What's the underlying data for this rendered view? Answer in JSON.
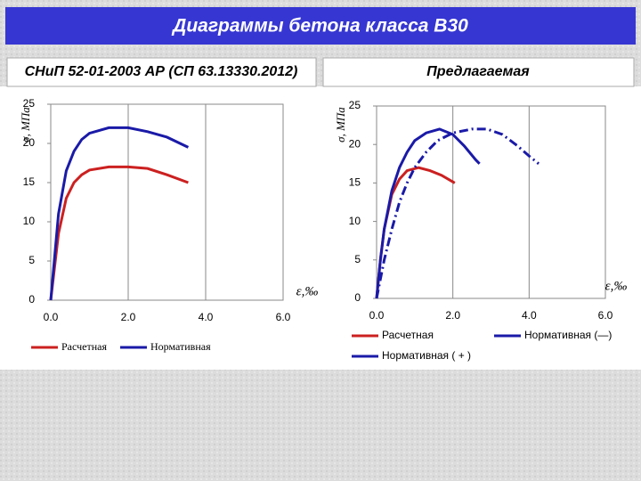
{
  "page_title": "Диаграммы бетона класса В30",
  "chart_data": [
    {
      "type": "line",
      "title": "СНиП 52-01-2003 АР (СП 63.13330.2012)",
      "xlabel": "ε,‰",
      "ylabel": "σ, МПа",
      "xlim": [
        0,
        6
      ],
      "ylim": [
        0,
        25
      ],
      "xticks": [
        {
          "value": 0,
          "label": "0.0"
        },
        {
          "value": 2,
          "label": "2.0"
        },
        {
          "value": 4,
          "label": "4.0"
        },
        {
          "value": 6,
          "label": "6.0"
        }
      ],
      "yticks": [
        0,
        5,
        10,
        15,
        20,
        25
      ],
      "grid": true,
      "legend": "bottom",
      "series": [
        {
          "name": "Расчетная",
          "color": "#cc2020",
          "line_style": "solid",
          "x": [
            0,
            0.2,
            0.4,
            0.6,
            0.8,
            1.0,
            1.5,
            2.0,
            2.5,
            3.0,
            3.55
          ],
          "values": [
            0,
            8.5,
            13,
            15,
            16,
            16.6,
            17,
            17,
            16.8,
            16,
            15
          ]
        },
        {
          "name": "Нормативная",
          "color": "#1a1aa8",
          "line_style": "solid",
          "x": [
            0,
            0.2,
            0.4,
            0.6,
            0.8,
            1.0,
            1.5,
            2.0,
            2.5,
            3.0,
            3.55
          ],
          "values": [
            0,
            11,
            16.5,
            19,
            20.5,
            21.3,
            22,
            22,
            21.5,
            20.8,
            19.5
          ]
        }
      ]
    },
    {
      "type": "line",
      "title": "Предлагаемая",
      "xlabel": "ε,‰",
      "ylabel": "σ, МПа",
      "xlim": [
        0,
        6
      ],
      "ylim": [
        0,
        25
      ],
      "xticks": [
        {
          "value": 0,
          "label": "0.0"
        },
        {
          "value": 2,
          "label": "2.0"
        },
        {
          "value": 4,
          "label": "4.0"
        },
        {
          "value": 6,
          "label": "6.0"
        }
      ],
      "yticks": [
        0,
        5,
        10,
        15,
        20,
        25
      ],
      "grid": true,
      "legend": "bottom",
      "series": [
        {
          "name": "Расчетная",
          "color": "#cc2020",
          "line_style": "solid",
          "x": [
            0,
            0.1,
            0.2,
            0.4,
            0.6,
            0.8,
            1.1,
            1.4,
            1.7,
            2.05
          ],
          "values": [
            0,
            5,
            9,
            13.5,
            15.5,
            16.6,
            17,
            16.6,
            16,
            15
          ]
        },
        {
          "name": "Нормативная (—)",
          "color": "#1a1aa8",
          "line_style": "solid",
          "x": [
            0,
            0.1,
            0.2,
            0.4,
            0.6,
            0.8,
            1.0,
            1.3,
            1.65,
            2.0,
            2.3,
            2.6,
            2.7
          ],
          "values": [
            0,
            5,
            9,
            14,
            17,
            19,
            20.5,
            21.5,
            22,
            21.3,
            19.8,
            18,
            17.5
          ]
        },
        {
          "name": "Нормативная ( + )",
          "color": "#1a1aa8",
          "line_style": "dashdot",
          "x": [
            0,
            0.2,
            0.4,
            0.6,
            0.8,
            1.0,
            1.3,
            1.6,
            2.0,
            2.5,
            2.9,
            3.3,
            3.7,
            4.0,
            4.25
          ],
          "values": [
            0,
            5,
            9,
            12.5,
            15,
            17,
            19,
            20.5,
            21.5,
            22,
            22,
            21.3,
            19.8,
            18.5,
            17.5
          ]
        }
      ]
    }
  ]
}
